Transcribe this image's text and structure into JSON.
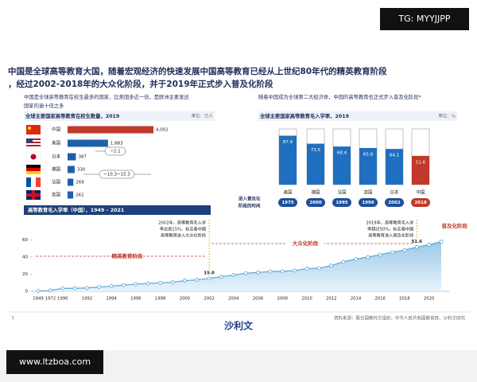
{
  "watermark": "TG: MYYJJPP",
  "site": "www.ltzboa.com",
  "title_lines": [
    "中国是全球高等教育大国，随着宏观经济的快速发展中国高等教育已经从上世纪80年代的精英教育阶段",
    "，经过2002-2018年的大众化阶段，并于2019年正式步入普及化阶段"
  ],
  "left_note": [
    "中国是全球高等教育在校生最多的国家，比美国多近一倍，是欧洲主要发达",
    "国家的逾十倍之多"
  ],
  "right_note": "随着中国成为全球第二大经济体，中国的高等教育也正式步入普及化阶段*",
  "adoption_label": [
    "进入普及化",
    "阶段的时间"
  ],
  "adoption_years": [
    "1975",
    "2000",
    "1995",
    "1996",
    "2002",
    "2018"
  ],
  "footer": {
    "source": "资料来源：联合国教科文组织，中华人民共和国教育部，沙利文研究",
    "logo": "沙利文",
    "page": "3"
  },
  "chart_data": [
    {
      "type": "barh",
      "title": "全球主要国家高等教育在校生数量，2019",
      "unit": "单位：万人",
      "categories": [
        "中国",
        "美国",
        "日本",
        "德国",
        "法国",
        "英国"
      ],
      "values": [
        4002,
        1883,
        387,
        330,
        269,
        262
      ],
      "value_labels": [
        "4,002",
        "1,883",
        "387",
        "330",
        "269",
        "262"
      ],
      "colors": [
        "#c0392b",
        "#1f5fa8",
        "#1f5fa8",
        "#1f5fa8",
        "#1f5fa8",
        "#1f5fa8"
      ],
      "xlim": [
        0,
        4500
      ],
      "annotations": [
        "~2.1",
        "~10.3~15.3"
      ]
    },
    {
      "type": "bar",
      "title": "全球主要国家高等教育毛入学率，2019",
      "unit": "单位：%",
      "categories": [
        "美国",
        "德国",
        "法国",
        "英国",
        "日本",
        "中国"
      ],
      "values": [
        87.9,
        73.5,
        68.4,
        65.8,
        64.1,
        51.6
      ],
      "colors": [
        "#1f6fc0",
        "#1f6fc0",
        "#1f6fc0",
        "#1f6fc0",
        "#1f6fc0",
        "#c0392b"
      ],
      "ylim": [
        0,
        100
      ]
    },
    {
      "type": "line",
      "title": "高等教育毛入学率（中国），1949 – 2021",
      "categories": [
        "1949",
        "1972",
        "1990",
        null,
        "1992",
        null,
        "1994",
        null,
        "1996",
        null,
        "1998",
        null,
        "2000",
        null,
        "2002",
        null,
        "2004",
        null,
        "2006",
        null,
        "2008",
        null,
        "2010",
        null,
        "2012",
        null,
        "2014",
        null,
        "2016",
        null,
        "2018",
        null,
        "2020",
        null
      ],
      "values": [
        0.3,
        1.0,
        3.4,
        3.5,
        3.9,
        5.0,
        6.0,
        7.2,
        8.3,
        9.1,
        9.8,
        10.5,
        12.5,
        13.3,
        15.0,
        17.0,
        19.0,
        21.0,
        22.0,
        23.0,
        23.3,
        24.2,
        26.5,
        26.9,
        30.0,
        34.5,
        37.5,
        40.0,
        42.7,
        45.7,
        48.1,
        51.6,
        54.4,
        57.8
      ],
      "value_labels": [
        null,
        null,
        null,
        null,
        null,
        null,
        null,
        null,
        null,
        null,
        null,
        null,
        null,
        null,
        "15.0",
        null,
        null,
        null,
        null,
        null,
        null,
        null,
        null,
        null,
        null,
        null,
        null,
        null,
        null,
        null,
        null,
        "51.6",
        null,
        null
      ],
      "color": "#5aa6d6",
      "ylim": [
        0,
        65
      ],
      "yticks": [
        0,
        20,
        40,
        60
      ],
      "annotations": [
        [
          "2002年，高等教育毛入学",
          "率达到15%，标志着中国",
          "高等教育进入大众化阶段"
        ],
        [
          "2019年，高等教育毛入学",
          "率超过50%，标志着中国",
          "高等教育进入普及化阶段"
        ]
      ],
      "phases": [
        "精英教育阶段",
        "大众化阶段",
        "普及化阶段"
      ]
    }
  ]
}
